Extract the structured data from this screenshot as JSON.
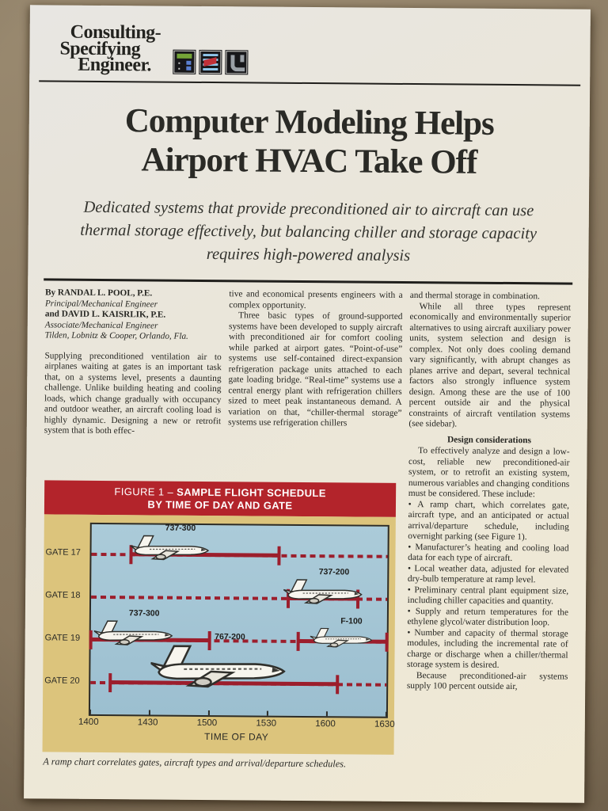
{
  "masthead": {
    "line1": "Consulting-",
    "line2": "Specifying",
    "line3": "Engineer.",
    "icons": [
      "thermostat-icon",
      "airflow-icon",
      "pipe-icon"
    ]
  },
  "title": {
    "line1": "Computer Modeling Helps",
    "line2": "Airport HVAC Take Off"
  },
  "deck": "Dedicated systems that provide preconditioned air to aircraft can use thermal storage effectively, but balancing chiller and storage capacity requires high-powered analysis",
  "byline": {
    "line1": "By RANDAL L. POOL, P.E.",
    "line2": "Principal/Mechanical Engineer",
    "line3": "and DAVID L. KAISRLIK, P.E.",
    "line4": "Associate/Mechanical Engineer",
    "line5": "Tilden, Lobnitz & Cooper, Orlando, Fla."
  },
  "columns": {
    "col1_par": "Supplying preconditioned ventilation air to airplanes waiting at gates is an important task that, on a systems level, presents a daunting challenge. Unlike building heating and cooling loads, which change gradually with occupancy and outdoor weather, an aircraft cooling load is highly dynamic. Designing a new or retrofit system that is both effec-",
    "col2_par1": "tive and economical presents engineers with a complex opportunity.",
    "col2_par2": "Three basic types of ground-supported systems have been developed to supply aircraft with preconditioned air for comfort cooling while parked at airport gates. “Point-of-use” systems use self-contained direct-expansion refrigeration package units attached to each gate loading bridge. “Real-time” systems use a central energy plant with refrigeration chillers sized to meet peak instantaneous demand. A variation on that, “chiller-thermal storage” systems use refrigeration chillers",
    "col3_par1": "and thermal storage in combination.",
    "col3_par2": "While all three types represent economically and environmentally superior alternatives to using aircraft auxiliary power units, system selection and design is complex. Not only does cooling demand vary significantly, with abrupt changes as planes arrive and depart, several technical factors also strongly influence system design. Among these are the use of 100 percent outside air and the physical constraints of aircraft ventilation systems (see sidebar).",
    "col3_heading": "Design considerations",
    "col3_par3": "To effectively analyze and design a low-cost, reliable new preconditioned-air system, or to retrofit an existing system, numerous variables and changing conditions must be considered. These include:",
    "col3_bullets": [
      "A ramp chart, which correlates gate, aircraft type, and an anticipated or actual arrival/departure schedule, including overnight parking (see Figure 1).",
      "Manufacturer’s heating and cooling load data for each type of aircraft.",
      "Local weather data, adjusted for elevated dry-bulb temperature at ramp level.",
      "Preliminary central plant equipment size, including chiller capacities and quantity.",
      "Supply and return temperatures for the ethylene glycol/water distribution loop.",
      "Number and capacity of thermal storage modules, including the incremental rate of charge or discharge when a chiller/thermal storage system is desired."
    ],
    "col3_par4": "Because preconditioned-air systems supply 100 percent outside air,"
  },
  "figure": {
    "banner_line1_prefix": "FIGURE 1 – ",
    "banner_line1_main": "SAMPLE FLIGHT SCHEDULE",
    "banner_line2": "BY TIME OF DAY AND GATE",
    "x_label": "TIME OF DAY",
    "x_ticks": [
      "1400",
      "1430",
      "1500",
      "1530",
      "1600",
      "1630"
    ],
    "caption": "A ramp chart correlates gates, aircraft types and arrival/departure schedules.",
    "colors": {
      "banner": "#b3242b",
      "panel": "#dcc47c",
      "plot": "#a2c3d3",
      "bar": "#9c1e2c"
    },
    "chart_data": {
      "type": "table",
      "title": "Sample flight schedule by time of day and gate",
      "time_axis_start": "1400",
      "time_axis_end": "1630",
      "gates": [
        {
          "label": "GATE 17",
          "occupied": [
            {
              "from": "1420",
              "to": "1535",
              "aircraft": "737-300",
              "plane_center": 0.27,
              "plane_size": "md"
            }
          ]
        },
        {
          "label": "GATE 18",
          "occupied": [
            {
              "from": "1540",
              "to": "1615",
              "aircraft": "737-200",
              "plane_center": 0.79,
              "plane_size": "md"
            }
          ]
        },
        {
          "label": "GATE 19",
          "occupied": [
            {
              "from": "1400",
              "to": "1500",
              "aircraft": "737-300",
              "plane_center": 0.15,
              "plane_size": "md"
            },
            {
              "from": "1545",
              "to": "1630",
              "aircraft": "F-100",
              "plane_center": 0.85,
              "plane_size": "sm"
            }
          ]
        },
        {
          "label": "GATE 20",
          "occupied": [
            {
              "from": "1410",
              "to": "1605",
              "aircraft": "767-200",
              "plane_center": 0.44,
              "plane_size": "lg"
            }
          ]
        }
      ]
    }
  }
}
